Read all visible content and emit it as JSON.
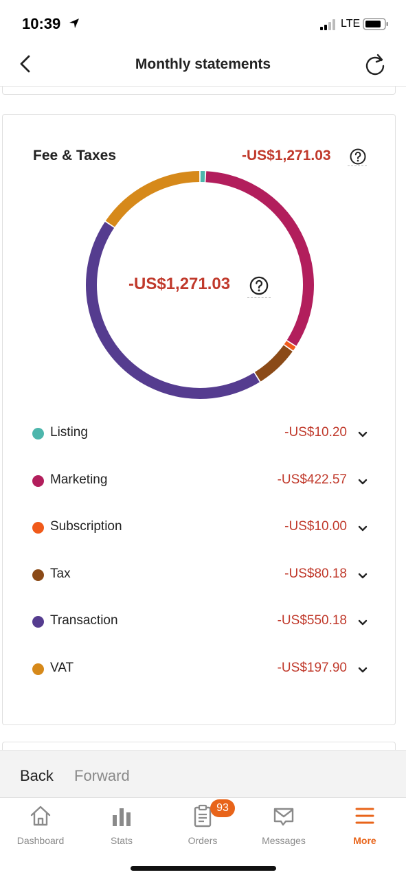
{
  "status_bar": {
    "time": "10:39",
    "network": "LTE",
    "icons": [
      "location-arrow-icon",
      "signal-icon",
      "battery-icon"
    ]
  },
  "nav": {
    "title": "Monthly statements",
    "back_icon": "chevron-left-icon",
    "refresh_icon": "refresh-icon"
  },
  "card": {
    "title": "Fee & Taxes",
    "total": "-US$1,271.03",
    "center_total": "-US$1,271.03",
    "help_icon": "question-circle-icon"
  },
  "categories": [
    {
      "label": "Listing",
      "value": "-US$10.20",
      "amount": 10.2,
      "color": "#4db6ac"
    },
    {
      "label": "Marketing",
      "value": "-US$422.57",
      "amount": 422.57,
      "color": "#b21e5c"
    },
    {
      "label": "Subscription",
      "value": "-US$10.00",
      "amount": 10.0,
      "color": "#f05a1a"
    },
    {
      "label": "Tax",
      "value": "-US$80.18",
      "amount": 80.18,
      "color": "#8b4a17"
    },
    {
      "label": "Transaction",
      "value": "-US$550.18",
      "amount": 550.18,
      "color": "#553c8f"
    },
    {
      "label": "VAT",
      "value": "-US$197.90",
      "amount": 197.9,
      "color": "#d6891a"
    }
  ],
  "back_forward": {
    "back": "Back",
    "forward": "Forward"
  },
  "tabs": [
    {
      "label": "Dashboard",
      "icon": "home-icon",
      "active": false
    },
    {
      "label": "Stats",
      "icon": "bar-chart-icon",
      "active": false
    },
    {
      "label": "Orders",
      "icon": "clipboard-icon",
      "active": false,
      "badge": "93"
    },
    {
      "label": "Messages",
      "icon": "envelope-icon",
      "active": false
    },
    {
      "label": "More",
      "icon": "menu-icon",
      "active": true
    }
  ],
  "colors": {
    "accent": "#e8641a",
    "negative": "#c0392b"
  }
}
